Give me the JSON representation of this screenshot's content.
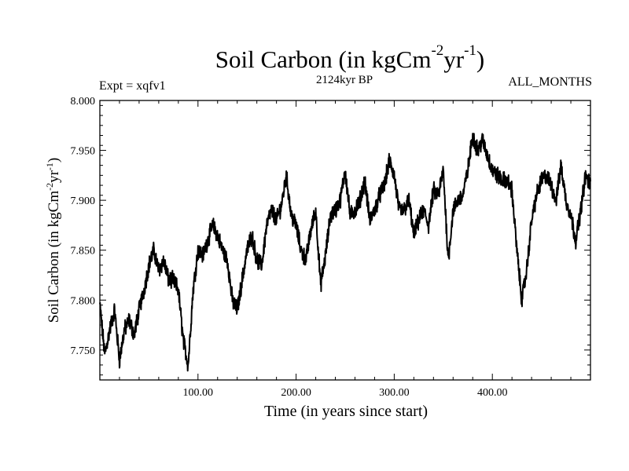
{
  "chart_data": {
    "type": "line",
    "title_main": "Soil Carbon (in kgCm",
    "title_exp1": "-2",
    "title_mid": "yr",
    "title_exp2": "-1",
    "title_end": ")",
    "subtitle": "2124kyr BP",
    "expt_label": "Expt = xqfv1",
    "months_label": "ALL_MONTHS",
    "xlabel": "Time (in years since start)",
    "ylabel_main": "Soil Carbon (in kgCm",
    "ylabel_exp1": "-2",
    "ylabel_mid": "yr",
    "ylabel_exp2": "-1",
    "ylabel_end": ")",
    "xlim": [
      0,
      500
    ],
    "ylim": [
      7.72,
      8.0
    ],
    "xticks": [
      100,
      200,
      300,
      400
    ],
    "xtick_labels": [
      "100.00",
      "200.00",
      "300.00",
      "400.00"
    ],
    "yticks": [
      7.75,
      7.8,
      7.85,
      7.9,
      7.95,
      8.0
    ],
    "ytick_labels": [
      "7.750",
      "7.800",
      "7.850",
      "7.900",
      "7.950",
      "8.000"
    ],
    "series": [
      {
        "name": "Soil Carbon",
        "x": [
          0,
          5,
          10,
          15,
          20,
          25,
          30,
          35,
          40,
          45,
          50,
          55,
          60,
          65,
          70,
          75,
          80,
          85,
          90,
          95,
          100,
          105,
          110,
          115,
          120,
          125,
          130,
          135,
          140,
          145,
          150,
          155,
          160,
          165,
          170,
          175,
          180,
          185,
          190,
          195,
          200,
          205,
          210,
          215,
          220,
          225,
          230,
          235,
          240,
          245,
          250,
          255,
          260,
          265,
          270,
          275,
          280,
          285,
          290,
          295,
          300,
          305,
          310,
          315,
          320,
          325,
          330,
          335,
          340,
          345,
          350,
          355,
          360,
          365,
          370,
          375,
          380,
          385,
          390,
          395,
          400,
          405,
          410,
          415,
          420,
          425,
          430,
          435,
          440,
          445,
          450,
          455,
          460,
          465,
          470,
          475,
          480,
          485,
          490,
          495,
          500
        ],
        "values": [
          7.795,
          7.745,
          7.77,
          7.79,
          7.74,
          7.77,
          7.78,
          7.765,
          7.79,
          7.81,
          7.835,
          7.85,
          7.83,
          7.84,
          7.82,
          7.82,
          7.81,
          7.76,
          7.735,
          7.81,
          7.85,
          7.845,
          7.86,
          7.875,
          7.865,
          7.85,
          7.84,
          7.8,
          7.79,
          7.82,
          7.85,
          7.865,
          7.84,
          7.835,
          7.875,
          7.89,
          7.88,
          7.895,
          7.925,
          7.885,
          7.875,
          7.85,
          7.84,
          7.87,
          7.89,
          7.815,
          7.845,
          7.885,
          7.89,
          7.9,
          7.93,
          7.885,
          7.89,
          7.9,
          7.92,
          7.88,
          7.89,
          7.905,
          7.915,
          7.94,
          7.925,
          7.89,
          7.89,
          7.9,
          7.865,
          7.88,
          7.89,
          7.875,
          7.91,
          7.905,
          7.93,
          7.84,
          7.89,
          7.9,
          7.905,
          7.93,
          7.965,
          7.95,
          7.96,
          7.945,
          7.93,
          7.925,
          7.92,
          7.92,
          7.91,
          7.85,
          7.8,
          7.83,
          7.88,
          7.905,
          7.92,
          7.925,
          7.915,
          7.9,
          7.935,
          7.9,
          7.885,
          7.86,
          7.89,
          7.925,
          7.915
        ]
      }
    ]
  }
}
